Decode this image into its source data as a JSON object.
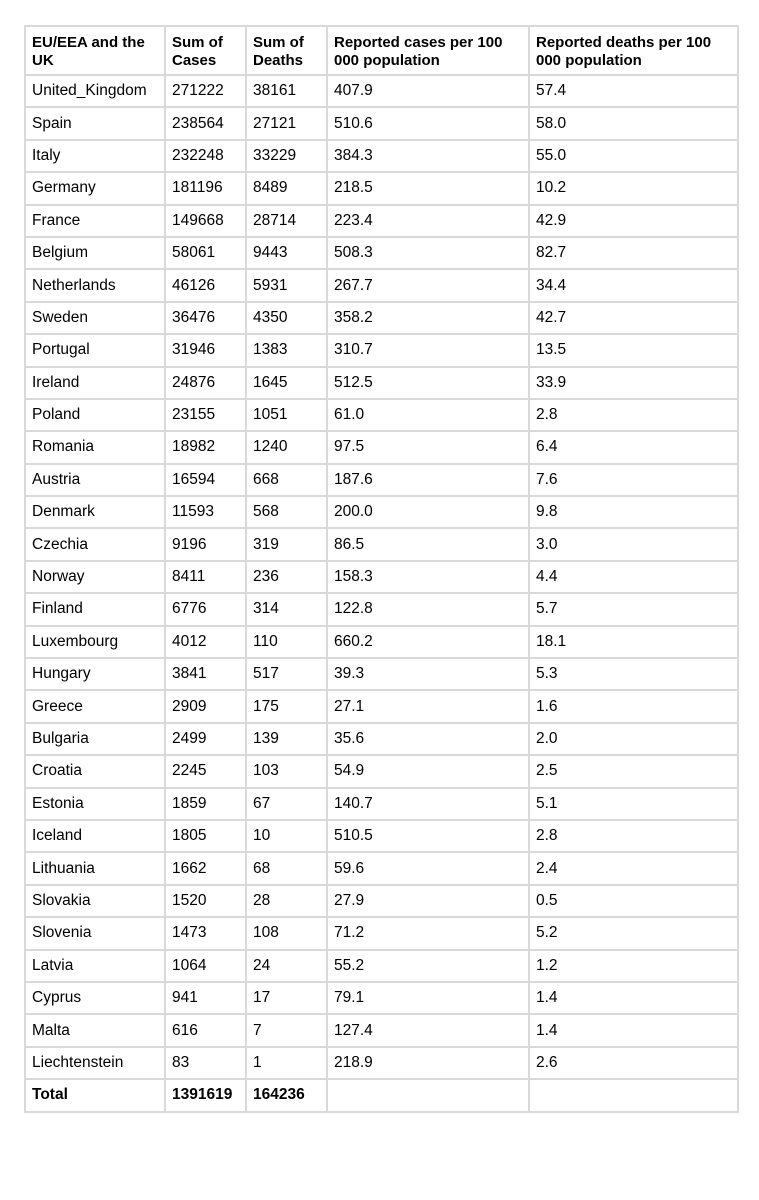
{
  "table": {
    "headers": [
      "EU/EEA and the UK",
      "Sum of Cases",
      "Sum of Deaths",
      "Reported cases per 100 000 population",
      "Reported deaths per 100 000 population"
    ],
    "rows": [
      [
        "United_Kingdom",
        "271222",
        "38161",
        "407.9",
        "57.4"
      ],
      [
        "Spain",
        "238564",
        "27121",
        "510.6",
        "58.0"
      ],
      [
        "Italy",
        "232248",
        "33229",
        "384.3",
        "55.0"
      ],
      [
        "Germany",
        "181196",
        "8489",
        "218.5",
        "10.2"
      ],
      [
        "France",
        "149668",
        "28714",
        "223.4",
        "42.9"
      ],
      [
        "Belgium",
        "58061",
        "9443",
        "508.3",
        "82.7"
      ],
      [
        "Netherlands",
        "46126",
        "5931",
        "267.7",
        "34.4"
      ],
      [
        "Sweden",
        "36476",
        "4350",
        "358.2",
        "42.7"
      ],
      [
        "Portugal",
        "31946",
        "1383",
        "310.7",
        "13.5"
      ],
      [
        "Ireland",
        "24876",
        "1645",
        "512.5",
        "33.9"
      ],
      [
        "Poland",
        "23155",
        "1051",
        "61.0",
        "2.8"
      ],
      [
        "Romania",
        "18982",
        "1240",
        "97.5",
        "6.4"
      ],
      [
        "Austria",
        "16594",
        "668",
        "187.6",
        "7.6"
      ],
      [
        "Denmark",
        "11593",
        "568",
        "200.0",
        "9.8"
      ],
      [
        "Czechia",
        "9196",
        "319",
        "86.5",
        "3.0"
      ],
      [
        "Norway",
        "8411",
        "236",
        "158.3",
        "4.4"
      ],
      [
        "Finland",
        "6776",
        "314",
        "122.8",
        "5.7"
      ],
      [
        "Luxembourg",
        "4012",
        "110",
        "660.2",
        "18.1"
      ],
      [
        "Hungary",
        "3841",
        "517",
        "39.3",
        "5.3"
      ],
      [
        "Greece",
        "2909",
        "175",
        "27.1",
        "1.6"
      ],
      [
        "Bulgaria",
        "2499",
        "139",
        "35.6",
        "2.0"
      ],
      [
        "Croatia",
        "2245",
        "103",
        "54.9",
        "2.5"
      ],
      [
        "Estonia",
        "1859",
        "67",
        "140.7",
        "5.1"
      ],
      [
        "Iceland",
        "1805",
        "10",
        "510.5",
        "2.8"
      ],
      [
        "Lithuania",
        "1662",
        "68",
        "59.6",
        "2.4"
      ],
      [
        "Slovakia",
        "1520",
        "28",
        "27.9",
        "0.5"
      ],
      [
        "Slovenia",
        "1473",
        "108",
        "71.2",
        "5.2"
      ],
      [
        "Latvia",
        "1064",
        "24",
        "55.2",
        "1.2"
      ],
      [
        "Cyprus",
        "941",
        "17",
        "79.1",
        "1.4"
      ],
      [
        "Malta",
        "616",
        "7",
        "127.4",
        "1.4"
      ],
      [
        "Liechtenstein",
        "83",
        "1",
        "218.9",
        "2.6"
      ]
    ],
    "total": [
      "Total",
      "1391619",
      "164236",
      "",
      ""
    ]
  }
}
